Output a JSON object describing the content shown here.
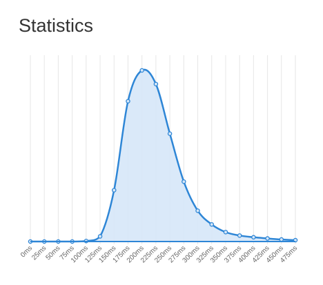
{
  "page": {
    "title": "Statistics"
  },
  "chart_data": {
    "type": "area",
    "title": "",
    "xlabel": "",
    "ylabel": "",
    "categories": [
      "0ms",
      "25ms",
      "50ms",
      "75ms",
      "100ms",
      "125ms",
      "150ms",
      "175ms",
      "200ms",
      "225ms",
      "250ms",
      "275ms",
      "300ms",
      "325ms",
      "350ms",
      "375ms",
      "400ms",
      "425ms",
      "450ms",
      "475ms"
    ],
    "series": [
      {
        "values": [
          0,
          0,
          0,
          0,
          0.3,
          3,
          30,
          82,
          100,
          92,
          63,
          35,
          18,
          10,
          5.5,
          3.5,
          2.5,
          1.8,
          1.2,
          0.8
        ]
      }
    ],
    "ylim": [
      0,
      100
    ],
    "grid": "vertical",
    "legend": "none",
    "colors": {
      "line": "#2e86d6",
      "fill": "#d6e7f8",
      "grid": "#e6e6e6",
      "tick_text": "#666666"
    }
  }
}
